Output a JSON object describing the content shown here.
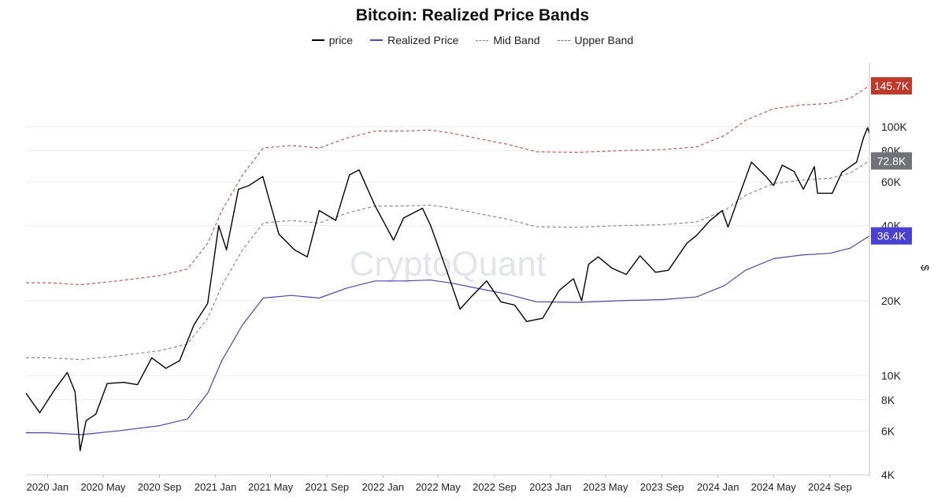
{
  "chart_data": {
    "type": "line",
    "title": "Bitcoin: Realized Price Bands",
    "ylabel": "$",
    "yscale": "log",
    "ylim": [
      4000,
      180000
    ],
    "grid": true,
    "legend_position": "top-center",
    "watermark": "CryptoQuant",
    "x_ticks": [
      "2020 Jan",
      "2020 May",
      "2020 Sep",
      "2021 Jan",
      "2021 May",
      "2021 Sep",
      "2022 Jan",
      "2022 May",
      "2022 Sep",
      "2023 Jan",
      "2023 May",
      "2023 Sep",
      "2024 Jan",
      "2024 May",
      "2024 Sep"
    ],
    "y_ticks": [
      {
        "value": 4000,
        "label": "4K"
      },
      {
        "value": 6000,
        "label": "6K"
      },
      {
        "value": 8000,
        "label": "8K"
      },
      {
        "value": 10000,
        "label": "10K"
      },
      {
        "value": 20000,
        "label": "20K"
      },
      {
        "value": 40000,
        "label": "40K"
      },
      {
        "value": 60000,
        "label": "60K"
      },
      {
        "value": 80000,
        "label": "80K"
      },
      {
        "value": 100000,
        "label": "100K"
      }
    ],
    "end_labels": [
      {
        "series": "Upper Band",
        "label": "145.7K",
        "value": 145700,
        "color": "#c0392b"
      },
      {
        "series": "Mid Band",
        "label": "72.8K",
        "value": 72800,
        "color": "#6f7378"
      },
      {
        "series": "Realized Price",
        "label": "36.4K",
        "value": 36400,
        "color": "#4a3fd6"
      }
    ],
    "series": [
      {
        "name": "price",
        "color": "#000000",
        "dash": "solid",
        "points": [
          [
            "2019-11-15",
            8500
          ],
          [
            "2019-12-15",
            7100
          ],
          [
            "2020-01-15",
            8700
          ],
          [
            "2020-02-13",
            10300
          ],
          [
            "2020-03-01",
            8600
          ],
          [
            "2020-03-12",
            5000
          ],
          [
            "2020-03-25",
            6600
          ],
          [
            "2020-04-15",
            7000
          ],
          [
            "2020-05-10",
            9300
          ],
          [
            "2020-06-15",
            9400
          ],
          [
            "2020-07-15",
            9200
          ],
          [
            "2020-08-15",
            11800
          ],
          [
            "2020-09-15",
            10700
          ],
          [
            "2020-10-15",
            11500
          ],
          [
            "2020-11-15",
            16000
          ],
          [
            "2020-12-15",
            19500
          ],
          [
            "2021-01-08",
            40000
          ],
          [
            "2021-01-25",
            32000
          ],
          [
            "2021-02-20",
            56000
          ],
          [
            "2021-03-15",
            58000
          ],
          [
            "2021-04-14",
            63000
          ],
          [
            "2021-05-19",
            37000
          ],
          [
            "2021-06-22",
            32000
          ],
          [
            "2021-07-20",
            30000
          ],
          [
            "2021-08-15",
            46000
          ],
          [
            "2021-09-20",
            42000
          ],
          [
            "2021-10-20",
            64000
          ],
          [
            "2021-11-10",
            67000
          ],
          [
            "2021-12-15",
            48000
          ],
          [
            "2022-01-24",
            35000
          ],
          [
            "2022-02-15",
            43000
          ],
          [
            "2022-03-28",
            47000
          ],
          [
            "2022-04-15",
            40000
          ],
          [
            "2022-05-12",
            29000
          ],
          [
            "2022-06-18",
            18500
          ],
          [
            "2022-07-15",
            21000
          ],
          [
            "2022-08-15",
            24000
          ],
          [
            "2022-09-15",
            19800
          ],
          [
            "2022-10-15",
            19200
          ],
          [
            "2022-11-10",
            16500
          ],
          [
            "2022-12-15",
            17000
          ],
          [
            "2023-01-20",
            22000
          ],
          [
            "2023-02-20",
            24500
          ],
          [
            "2023-03-10",
            20000
          ],
          [
            "2023-03-25",
            28000
          ],
          [
            "2023-04-15",
            30000
          ],
          [
            "2023-05-15",
            27000
          ],
          [
            "2023-06-15",
            25500
          ],
          [
            "2023-07-15",
            30300
          ],
          [
            "2023-08-18",
            26000
          ],
          [
            "2023-09-15",
            26500
          ],
          [
            "2023-10-25",
            34000
          ],
          [
            "2023-11-15",
            36500
          ],
          [
            "2023-12-15",
            42000
          ],
          [
            "2024-01-10",
            46000
          ],
          [
            "2024-01-23",
            39500
          ],
          [
            "2024-02-15",
            52000
          ],
          [
            "2024-03-14",
            72000
          ],
          [
            "2024-04-15",
            63000
          ],
          [
            "2024-05-01",
            58000
          ],
          [
            "2024-05-20",
            70000
          ],
          [
            "2024-06-15",
            66000
          ],
          [
            "2024-07-05",
            56000
          ],
          [
            "2024-07-29",
            69000
          ],
          [
            "2024-08-05",
            54000
          ],
          [
            "2024-09-06",
            54000
          ],
          [
            "2024-09-27",
            65500
          ],
          [
            "2024-10-29",
            72000
          ],
          [
            "2024-11-13",
            90000
          ],
          [
            "2024-11-22",
            99000
          ],
          [
            "2024-11-26",
            94000
          ]
        ]
      },
      {
        "name": "Realized Price",
        "color": "#4a3fd6",
        "dash": "solid",
        "points": [
          [
            "2019-11-15",
            5900
          ],
          [
            "2020-01-01",
            5900
          ],
          [
            "2020-03-15",
            5800
          ],
          [
            "2020-06-01",
            6000
          ],
          [
            "2020-09-01",
            6300
          ],
          [
            "2020-11-01",
            6700
          ],
          [
            "2020-12-15",
            8500
          ],
          [
            "2021-01-15",
            11500
          ],
          [
            "2021-03-01",
            16000
          ],
          [
            "2021-04-15",
            20500
          ],
          [
            "2021-06-15",
            21000
          ],
          [
            "2021-08-15",
            20500
          ],
          [
            "2021-10-15",
            22500
          ],
          [
            "2021-12-15",
            24000
          ],
          [
            "2022-02-15",
            24000
          ],
          [
            "2022-04-15",
            24200
          ],
          [
            "2022-06-01",
            23500
          ],
          [
            "2022-08-01",
            22300
          ],
          [
            "2022-10-01",
            21200
          ],
          [
            "2022-12-01",
            19800
          ],
          [
            "2023-03-01",
            19700
          ],
          [
            "2023-06-01",
            20000
          ],
          [
            "2023-09-01",
            20200
          ],
          [
            "2023-11-15",
            20700
          ],
          [
            "2024-01-15",
            23000
          ],
          [
            "2024-03-01",
            26500
          ],
          [
            "2024-05-01",
            29500
          ],
          [
            "2024-07-01",
            30500
          ],
          [
            "2024-09-01",
            31000
          ],
          [
            "2024-10-15",
            32500
          ],
          [
            "2024-11-26",
            36400
          ]
        ]
      },
      {
        "name": "Mid Band",
        "color": "#8a8a8a",
        "dash": "dashed",
        "points": [
          [
            "2019-11-15",
            11800
          ],
          [
            "2020-01-01",
            11800
          ],
          [
            "2020-03-15",
            11600
          ],
          [
            "2020-06-01",
            12000
          ],
          [
            "2020-09-01",
            12600
          ],
          [
            "2020-11-01",
            13400
          ],
          [
            "2020-12-15",
            17000
          ],
          [
            "2021-01-15",
            23000
          ],
          [
            "2021-03-01",
            32000
          ],
          [
            "2021-04-15",
            41000
          ],
          [
            "2021-06-15",
            42000
          ],
          [
            "2021-08-15",
            41000
          ],
          [
            "2021-10-15",
            45000
          ],
          [
            "2021-12-15",
            48000
          ],
          [
            "2022-02-15",
            48000
          ],
          [
            "2022-04-15",
            48400
          ],
          [
            "2022-06-01",
            47000
          ],
          [
            "2022-08-01",
            44600
          ],
          [
            "2022-10-01",
            42400
          ],
          [
            "2022-12-01",
            39600
          ],
          [
            "2023-03-01",
            39400
          ],
          [
            "2023-06-01",
            40000
          ],
          [
            "2023-09-01",
            40400
          ],
          [
            "2023-11-15",
            41400
          ],
          [
            "2024-01-15",
            46000
          ],
          [
            "2024-03-01",
            53000
          ],
          [
            "2024-05-01",
            59000
          ],
          [
            "2024-07-01",
            61000
          ],
          [
            "2024-09-01",
            62000
          ],
          [
            "2024-10-15",
            65000
          ],
          [
            "2024-11-26",
            72800
          ]
        ]
      },
      {
        "name": "Upper Band",
        "color": "#d9534f",
        "dash": "dashed",
        "points": [
          [
            "2019-11-15",
            23600
          ],
          [
            "2020-01-01",
            23600
          ],
          [
            "2020-03-15",
            23200
          ],
          [
            "2020-06-01",
            24000
          ],
          [
            "2020-09-01",
            25200
          ],
          [
            "2020-11-01",
            26800
          ],
          [
            "2020-12-15",
            34000
          ],
          [
            "2021-01-15",
            46000
          ],
          [
            "2021-03-01",
            64000
          ],
          [
            "2021-04-15",
            82000
          ],
          [
            "2021-06-15",
            84000
          ],
          [
            "2021-08-15",
            82000
          ],
          [
            "2021-10-15",
            90000
          ],
          [
            "2021-12-15",
            96000
          ],
          [
            "2022-02-15",
            96000
          ],
          [
            "2022-04-15",
            96800
          ],
          [
            "2022-06-01",
            94000
          ],
          [
            "2022-08-01",
            89200
          ],
          [
            "2022-10-01",
            84800
          ],
          [
            "2022-12-01",
            79200
          ],
          [
            "2023-03-01",
            78800
          ],
          [
            "2023-06-01",
            80000
          ],
          [
            "2023-09-01",
            80800
          ],
          [
            "2023-11-15",
            82800
          ],
          [
            "2024-01-15",
            92000
          ],
          [
            "2024-03-01",
            106000
          ],
          [
            "2024-05-01",
            118000
          ],
          [
            "2024-07-01",
            122000
          ],
          [
            "2024-09-01",
            124000
          ],
          [
            "2024-10-15",
            130000
          ],
          [
            "2024-11-26",
            145700
          ]
        ]
      }
    ]
  }
}
